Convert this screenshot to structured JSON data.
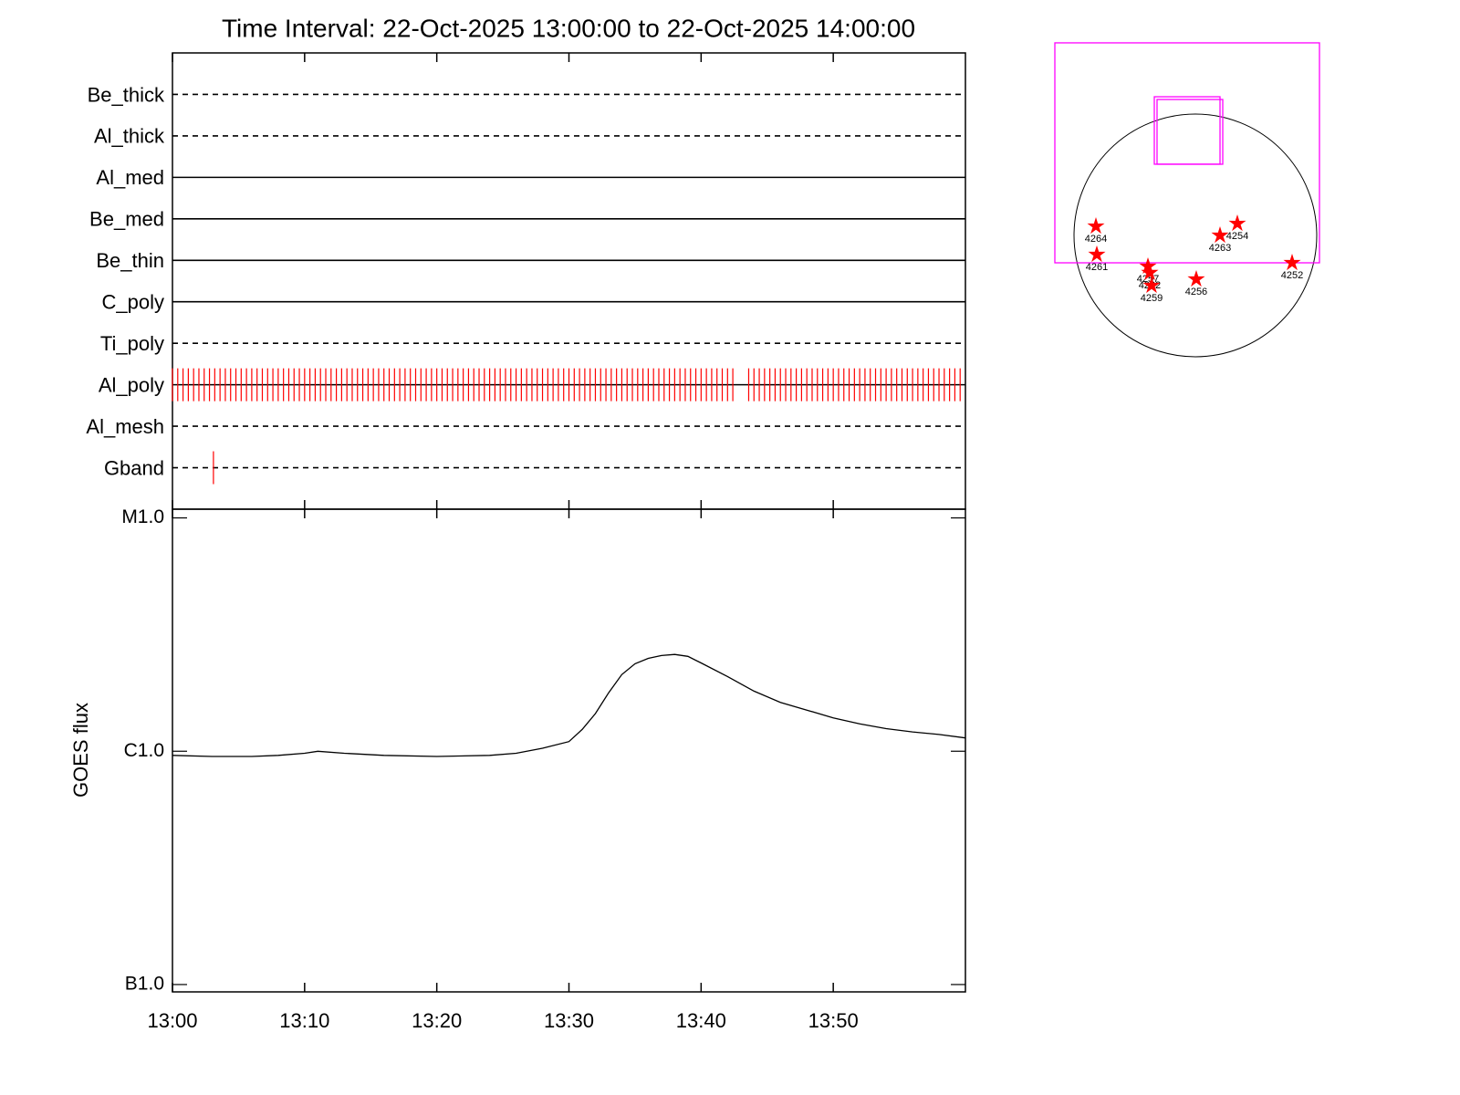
{
  "chart_data": [
    {
      "type": "timeline",
      "title": "Time Interval: 22-Oct-2025 13:00:00 to 22-Oct-2025 14:00:00",
      "categories": [
        "Be_thick",
        "Al_thick",
        "Al_med",
        "Be_med",
        "Be_thin",
        "C_poly",
        "Ti_poly",
        "Al_poly",
        "Al_mesh",
        "Gband"
      ],
      "styles": [
        "dashed",
        "dashed",
        "solid",
        "solid",
        "solid",
        "solid",
        "dashed",
        "solid",
        "dashed",
        "dashed"
      ],
      "event_color": "#ff0000",
      "events": [
        [],
        [],
        [],
        [],
        [],
        [],
        [],
        [
          0,
          0.4,
          0.8,
          1.2,
          1.6,
          2,
          2.4,
          2.8,
          3.2,
          3.6,
          4,
          4.4,
          4.8,
          5.2,
          5.6,
          6,
          6.4,
          6.8,
          7.2,
          7.6,
          8,
          8.4,
          8.8,
          9.2,
          9.6,
          10,
          10.4,
          10.8,
          11.2,
          11.6,
          12,
          12.4,
          12.8,
          13.2,
          13.6,
          14,
          14.4,
          14.8,
          15.2,
          15.6,
          16,
          16.4,
          16.8,
          17.2,
          17.6,
          18,
          18.4,
          18.8,
          19.2,
          19.6,
          20,
          20.4,
          20.8,
          21.2,
          21.6,
          22,
          22.4,
          22.8,
          23.2,
          23.6,
          24,
          24.4,
          24.8,
          25.2,
          25.6,
          26,
          26.4,
          26.8,
          27.2,
          27.6,
          28,
          28.4,
          28.8,
          29.2,
          29.6,
          30,
          30.4,
          30.8,
          31.2,
          31.6,
          32,
          32.4,
          32.8,
          33.2,
          33.6,
          34,
          34.4,
          34.8,
          35.2,
          35.6,
          36,
          36.4,
          36.8,
          37.2,
          37.6,
          38,
          38.4,
          38.8,
          39.2,
          39.6,
          40,
          40.4,
          40.8,
          41.2,
          41.6,
          42,
          42.4,
          43.6,
          44,
          44.4,
          44.8,
          45.2,
          45.6,
          46,
          46.4,
          46.8,
          47.2,
          47.6,
          48,
          48.4,
          48.8,
          49.2,
          49.6,
          50,
          50.4,
          50.8,
          51.2,
          51.6,
          52,
          52.4,
          52.8,
          53.2,
          53.6,
          54,
          54.4,
          54.8,
          55.2,
          55.6,
          56,
          56.4,
          56.8,
          57.2,
          57.6,
          58,
          58.4,
          58.8,
          59.2,
          59.6
        ],
        [],
        [
          3.1
        ]
      ],
      "xlim": [
        0,
        60
      ],
      "xticks": [
        0,
        10,
        20,
        30,
        40,
        50
      ]
    },
    {
      "type": "line",
      "y_label": "GOES flux",
      "ylog": true,
      "color": "#000000",
      "x": [
        0,
        3,
        6,
        8,
        10,
        11,
        13,
        16,
        20,
        24,
        26,
        28,
        30,
        31,
        32,
        33,
        34,
        35,
        36,
        37,
        38,
        39,
        40,
        42,
        44,
        46,
        48,
        50,
        52,
        54,
        56,
        58,
        60
      ],
      "values": [
        9.6e-07,
        9.5e-07,
        9.5e-07,
        9.6e-07,
        9.8e-07,
        1e-06,
        9.8e-07,
        9.6e-07,
        9.5e-07,
        9.6e-07,
        9.8e-07,
        1.03e-06,
        1.1e-06,
        1.24e-06,
        1.45e-06,
        1.78e-06,
        2.13e-06,
        2.37e-06,
        2.5e-06,
        2.57e-06,
        2.6e-06,
        2.55e-06,
        2.39e-06,
        2.09e-06,
        1.81e-06,
        1.62e-06,
        1.5e-06,
        1.39e-06,
        1.31e-06,
        1.25e-06,
        1.21e-06,
        1.18e-06,
        1.14e-06
      ],
      "xlim": [
        0,
        60
      ],
      "xticks": [
        {
          "value": 0,
          "label": "13:00"
        },
        {
          "value": 10,
          "label": "13:10"
        },
        {
          "value": 20,
          "label": "13:20"
        },
        {
          "value": 30,
          "label": "13:30"
        },
        {
          "value": 40,
          "label": "13:40"
        },
        {
          "value": 50,
          "label": "13:50"
        }
      ],
      "ylim": [
        9.3e-08,
        1.09e-05
      ],
      "yticks": [
        {
          "value": 1e-05,
          "label": "M1.0"
        },
        {
          "value": 1e-06,
          "label": "C1.0"
        },
        {
          "value": 1e-07,
          "label": "B1.0"
        }
      ]
    },
    {
      "type": "map",
      "xlim": [
        -1173,
        1173
      ],
      "ylim": [
        -1041,
        1598
      ],
      "radius": 975,
      "box_color": "#ff00ff",
      "boxes": [
        {
          "x": [
            -1129,
            997
          ],
          "y": [
            -220,
            1547
          ]
        },
        {
          "x": [
            -330,
            198
          ],
          "y": [
            572,
            1114
          ]
        },
        {
          "x": [
            -308,
            220
          ],
          "y": [
            572,
            1092
          ]
        }
      ],
      "point_color": "#ff0000",
      "points": [
        {
          "label": "4264",
          "x": -799,
          "y": 73
        },
        {
          "label": "4261",
          "x": -792,
          "y": -154
        },
        {
          "label": "4257",
          "x": -381,
          "y": -249
        },
        {
          "label": "4262",
          "x": -367,
          "y": -300
        },
        {
          "label": "4259",
          "x": -352,
          "y": -403
        },
        {
          "label": "4256",
          "x": 7,
          "y": -352
        },
        {
          "label": "4263",
          "x": 198,
          "y": 0
        },
        {
          "label": "4254",
          "x": 337,
          "y": 95
        },
        {
          "label": "4252",
          "x": 777,
          "y": -220
        }
      ]
    }
  ]
}
